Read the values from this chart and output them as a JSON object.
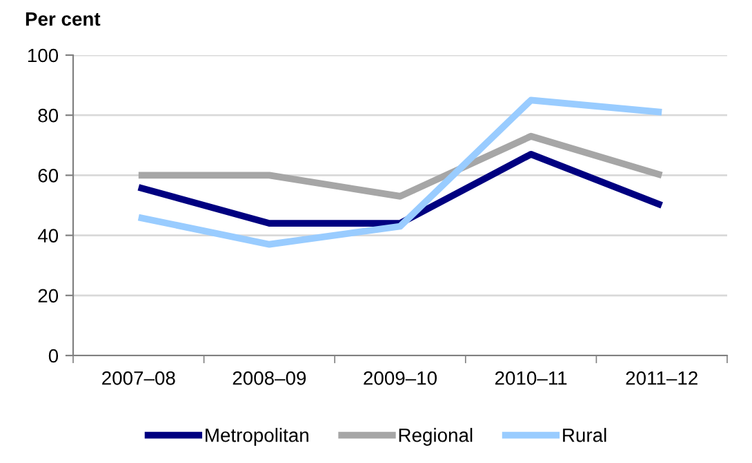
{
  "chart_data": {
    "type": "line",
    "ylabel": "Per cent",
    "categories": [
      "2007–08",
      "2008–09",
      "2009–10",
      "2010–11",
      "2011–12"
    ],
    "series": [
      {
        "name": "Metropolitan",
        "color": "#000080",
        "values": [
          56,
          44,
          44,
          67,
          50
        ]
      },
      {
        "name": "Regional",
        "color": "#a6a6a6",
        "values": [
          60,
          60,
          53,
          73,
          60
        ]
      },
      {
        "name": "Rural",
        "color": "#99ccff",
        "values": [
          46,
          37,
          43,
          85,
          81
        ]
      }
    ],
    "ylim": [
      0,
      100
    ],
    "yticks": [
      0,
      20,
      40,
      60,
      80,
      100
    ],
    "grid": "y",
    "legend": "bottom",
    "marker": "none",
    "line_style": "solid"
  }
}
